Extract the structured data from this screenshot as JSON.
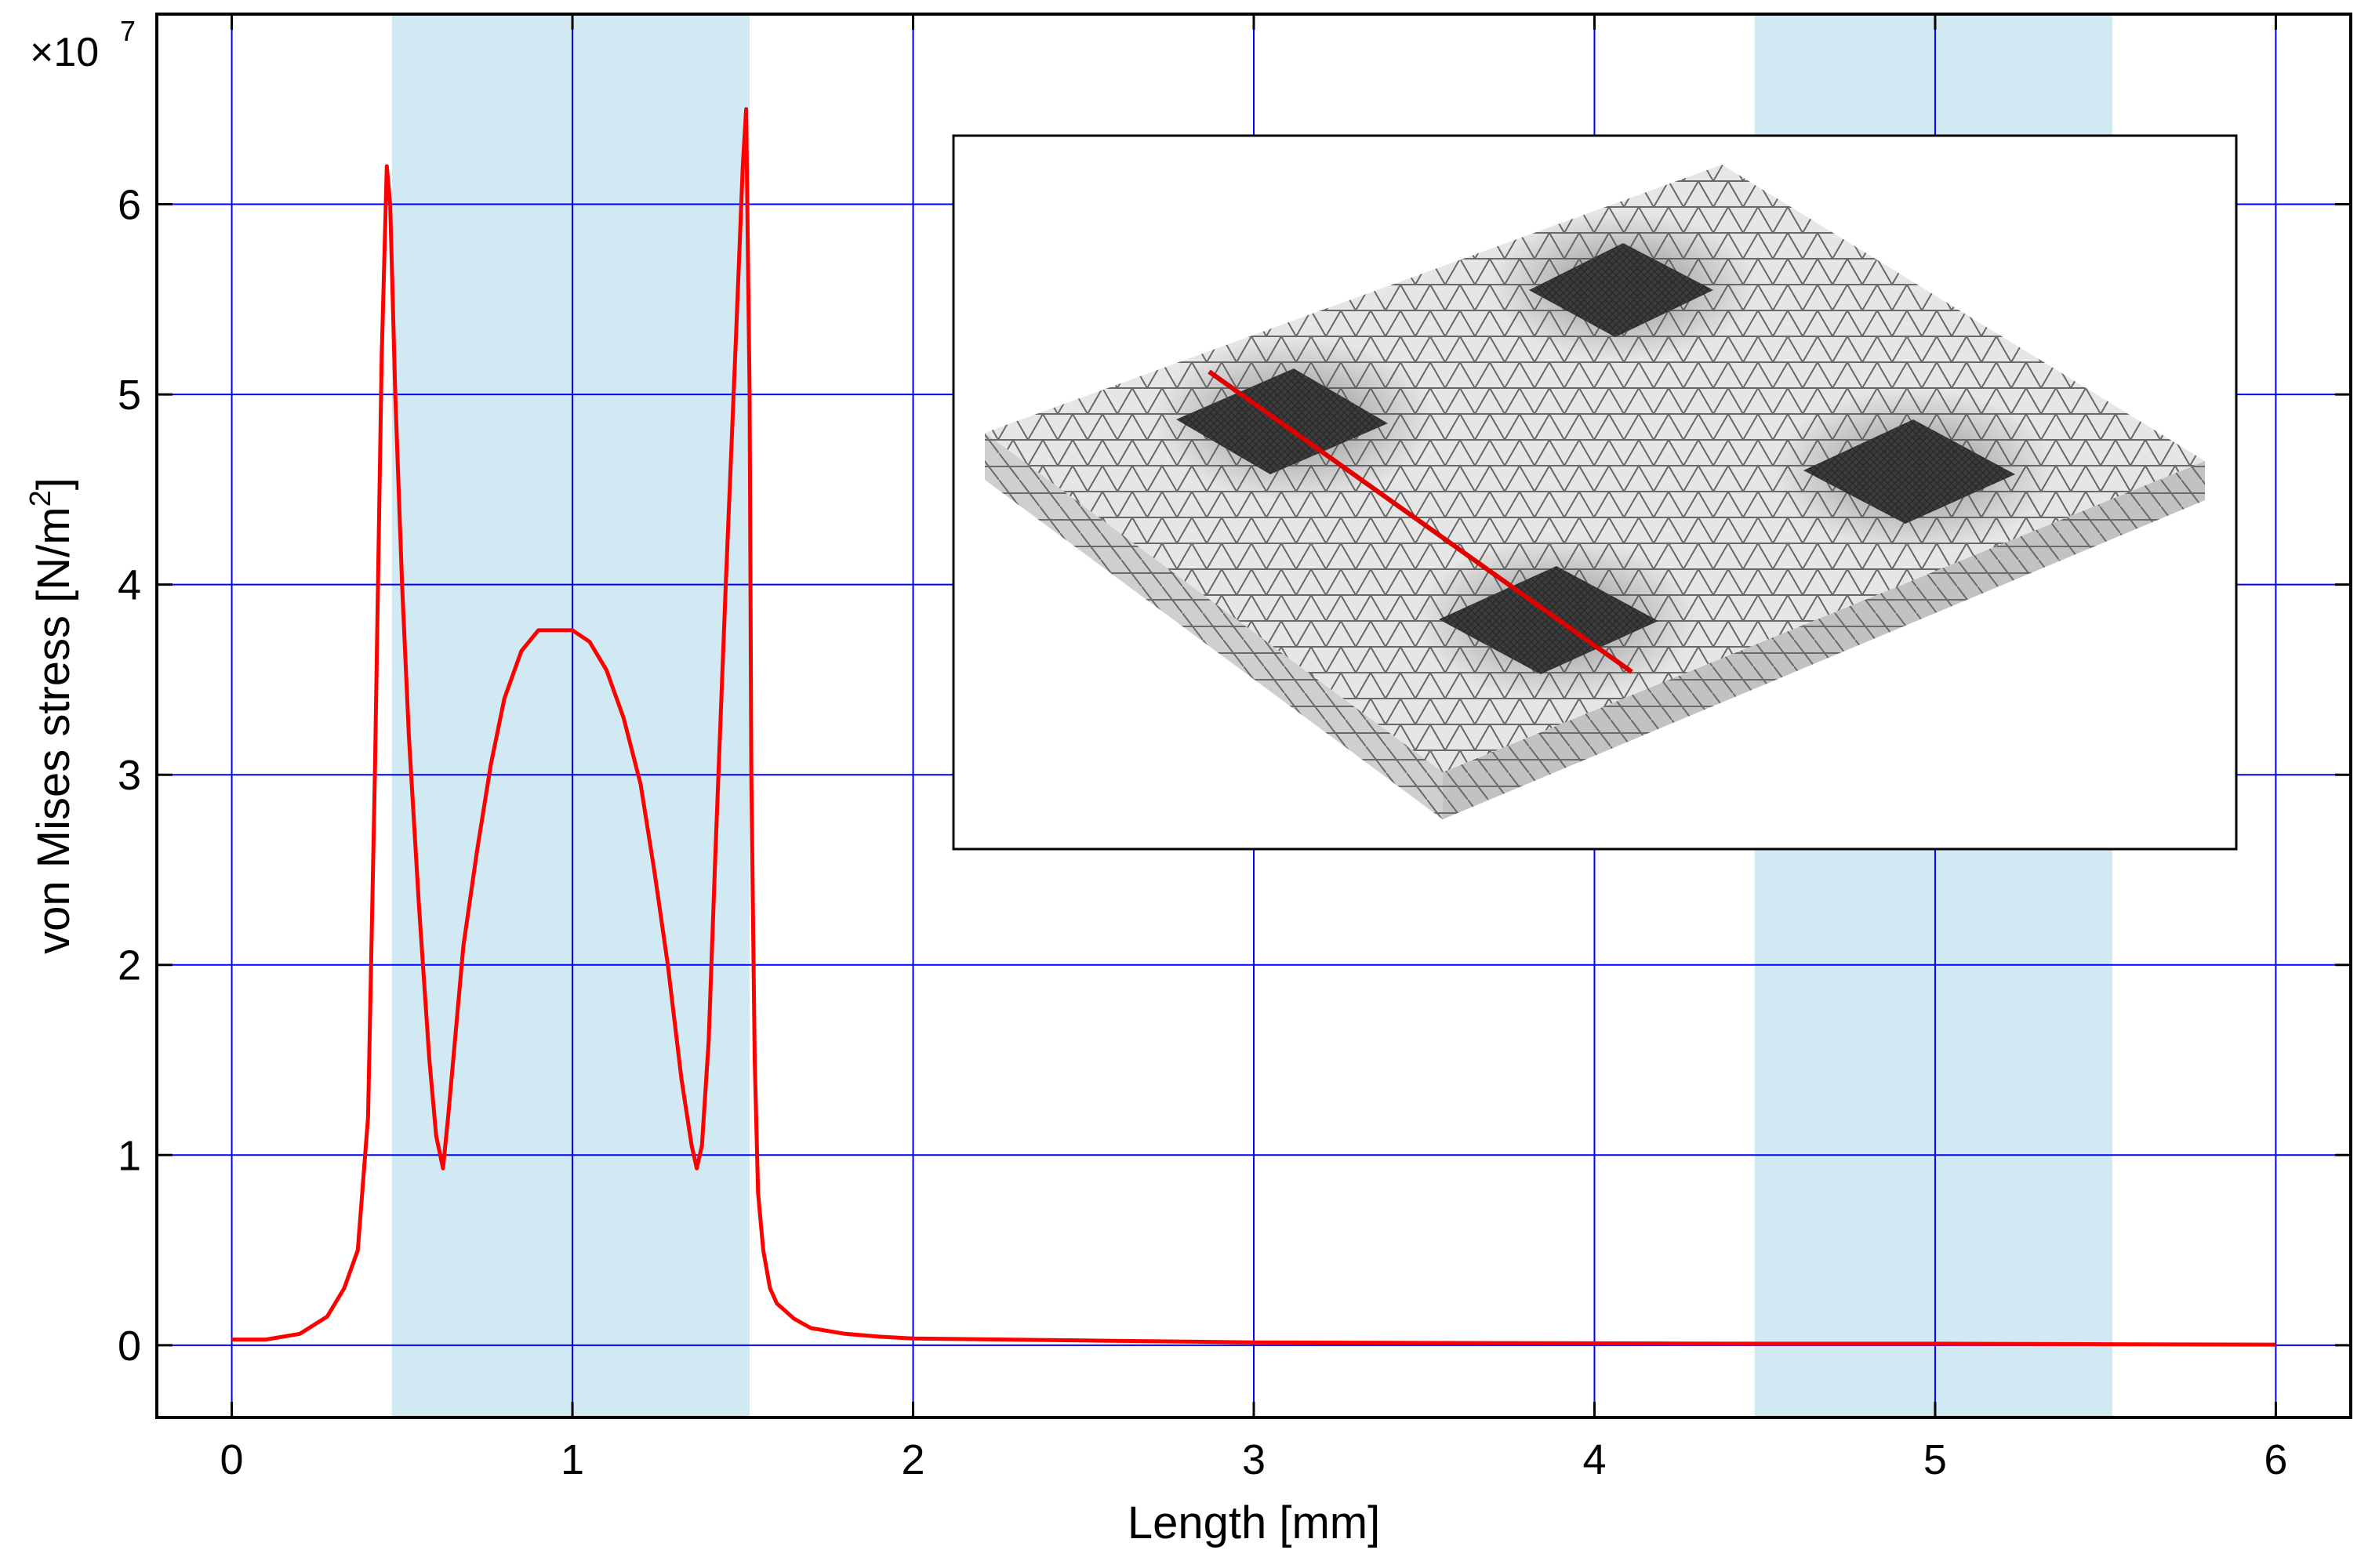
{
  "chart_data": {
    "type": "line",
    "title": "",
    "xlabel": "Length [mm]",
    "ylabel_main": "von Mises stress [N/m",
    "ylabel_sup": "2",
    "ylabel_end": "]",
    "y_multiplier_prefix": "×10",
    "y_multiplier_exp": "7",
    "xlim": [
      -0.22,
      6.22
    ],
    "ylim": [
      -0.38,
      7.0
    ],
    "x_ticks": [
      0,
      1,
      2,
      3,
      4,
      5,
      6
    ],
    "x_tick_labels": [
      "0",
      "1",
      "2",
      "3",
      "4",
      "5",
      "6"
    ],
    "y_ticks": [
      0,
      1,
      2,
      3,
      4,
      5,
      6
    ],
    "y_tick_labels": [
      "0",
      "1",
      "2",
      "3",
      "4",
      "5",
      "6"
    ],
    "grid": true,
    "grid_color": "#0000ff",
    "line_color": "#ff0000",
    "band_color": "#d1e9f2",
    "shaded_bands": [
      [
        0.47,
        1.52
      ],
      [
        4.47,
        5.52
      ]
    ],
    "series": [
      {
        "name": "von Mises stress",
        "x": [
          0,
          0.1,
          0.2,
          0.28,
          0.33,
          0.37,
          0.4,
          0.42,
          0.44,
          0.455,
          0.465,
          0.48,
          0.5,
          0.52,
          0.55,
          0.58,
          0.6,
          0.62,
          0.635,
          0.65,
          0.68,
          0.72,
          0.76,
          0.8,
          0.85,
          0.9,
          0.95,
          1.0,
          1.05,
          1.1,
          1.15,
          1.2,
          1.24,
          1.28,
          1.32,
          1.35,
          1.365,
          1.38,
          1.4,
          1.42,
          1.45,
          1.48,
          1.5,
          1.51,
          1.52,
          1.525,
          1.535,
          1.545,
          1.56,
          1.58,
          1.6,
          1.65,
          1.7,
          1.8,
          1.9,
          2.0,
          2.5,
          3.0,
          3.5,
          4.0,
          4.5,
          5.0,
          5.5,
          6.0
        ],
        "y": [
          0.03,
          0.03,
          0.06,
          0.15,
          0.3,
          0.5,
          1.2,
          3.0,
          5.2,
          6.2,
          6.0,
          5.0,
          4.0,
          3.2,
          2.3,
          1.5,
          1.1,
          0.93,
          1.2,
          1.5,
          2.1,
          2.6,
          3.05,
          3.4,
          3.65,
          3.76,
          3.76,
          3.76,
          3.7,
          3.55,
          3.3,
          2.95,
          2.5,
          2.0,
          1.4,
          1.05,
          0.93,
          1.05,
          1.6,
          2.6,
          4.0,
          5.3,
          6.2,
          6.5,
          5.0,
          3.0,
          1.5,
          0.8,
          0.5,
          0.3,
          0.22,
          0.14,
          0.09,
          0.06,
          0.045,
          0.035,
          0.025,
          0.015,
          0.012,
          0.01,
          0.008,
          0.008,
          0.005,
          0.003
        ]
      }
    ]
  },
  "inset": {
    "description_label": "mesh-inset",
    "line_color": "#e00000",
    "plate_top_color": "#e6e6e6",
    "plate_side_color": "#c8c8c8",
    "pad_color": "#3c3c3c",
    "mesh_line_color": "#5a5a5a"
  }
}
